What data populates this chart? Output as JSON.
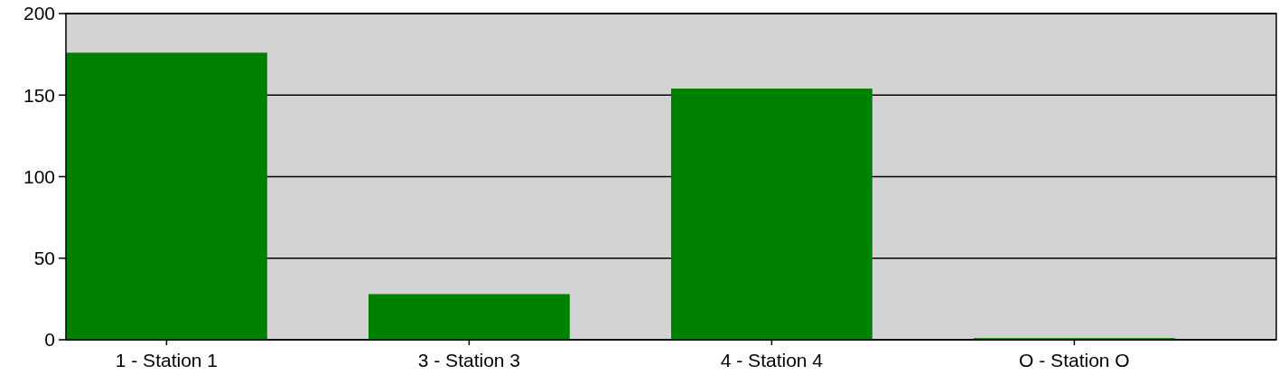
{
  "chart_data": {
    "type": "bar",
    "categories": [
      "1 - Station 1",
      "3 - Station 3",
      "4 - Station 4",
      "O - Station O"
    ],
    "values": [
      176,
      28,
      154,
      1
    ],
    "color": "#008000",
    "ylim": [
      0,
      200
    ],
    "yticks": [
      0,
      50,
      100,
      150,
      200
    ],
    "grid": "y"
  }
}
